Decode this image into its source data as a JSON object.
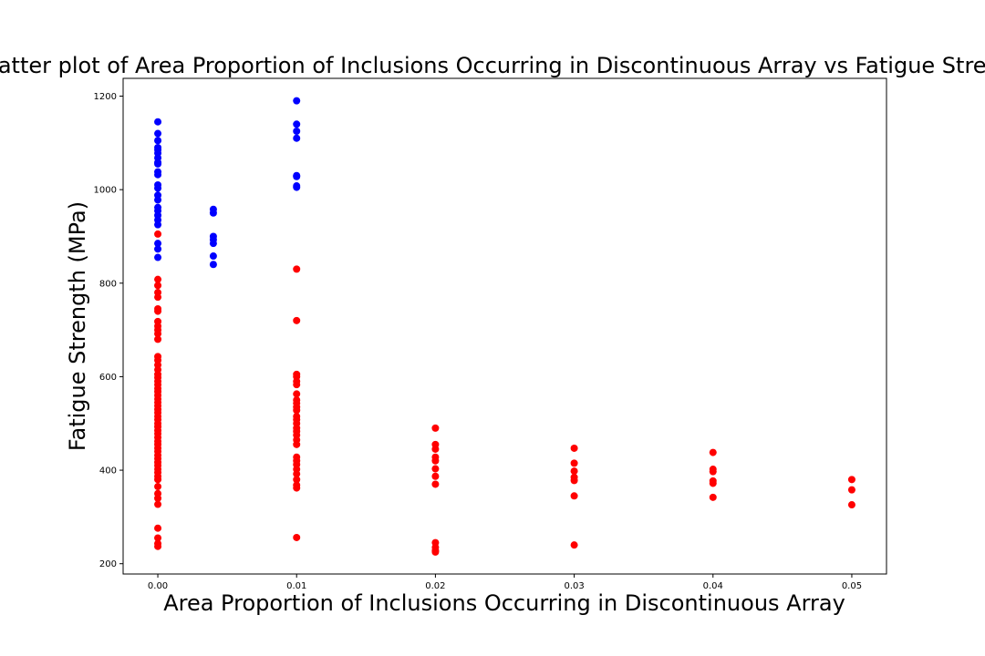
{
  "chart_data": {
    "type": "scatter",
    "title": "Scatter plot of Area Proportion of Inclusions Occurring in Discontinuous Array vs Fatigue Strength",
    "xlabel": "Area Proportion of Inclusions Occurring in Discontinuous Array",
    "ylabel": "Fatigue Strength (MPa)",
    "xlim": [
      -0.0025,
      0.0525
    ],
    "ylim": [
      178,
      1238
    ],
    "xticks": [
      0.0,
      0.01,
      0.02,
      0.03,
      0.04,
      0.05
    ],
    "xtick_labels": [
      "0.00",
      "0.01",
      "0.02",
      "0.03",
      "0.04",
      "0.05"
    ],
    "yticks": [
      200,
      400,
      600,
      800,
      1000,
      1200
    ],
    "ytick_labels": [
      "200",
      "400",
      "600",
      "800",
      "1000",
      "1200"
    ],
    "grid": false,
    "series": [
      {
        "color": "#0000ff",
        "points": [
          [
            0.0,
            1145
          ],
          [
            0.0,
            1120
          ],
          [
            0.0,
            1105
          ],
          [
            0.0,
            1090
          ],
          [
            0.0,
            1085
          ],
          [
            0.0,
            1078
          ],
          [
            0.0,
            1068
          ],
          [
            0.0,
            1058
          ],
          [
            0.0,
            1055
          ],
          [
            0.0,
            1038
          ],
          [
            0.0,
            1032
          ],
          [
            0.0,
            1010
          ],
          [
            0.0,
            1003
          ],
          [
            0.0,
            988
          ],
          [
            0.0,
            978
          ],
          [
            0.0,
            962
          ],
          [
            0.0,
            955
          ],
          [
            0.0,
            945
          ],
          [
            0.0,
            935
          ],
          [
            0.0,
            925
          ],
          [
            0.0,
            885
          ],
          [
            0.0,
            873
          ],
          [
            0.0,
            855
          ],
          [
            0.004,
            958
          ],
          [
            0.004,
            950
          ],
          [
            0.004,
            900
          ],
          [
            0.004,
            893
          ],
          [
            0.004,
            885
          ],
          [
            0.004,
            858
          ],
          [
            0.004,
            840
          ],
          [
            0.01,
            1190
          ],
          [
            0.01,
            1140
          ],
          [
            0.01,
            1125
          ],
          [
            0.01,
            1110
          ],
          [
            0.01,
            1030
          ],
          [
            0.01,
            1028
          ],
          [
            0.01,
            1008
          ],
          [
            0.01,
            1005
          ]
        ]
      },
      {
        "color": "#ff0000",
        "points": [
          [
            0.0,
            905
          ],
          [
            0.0,
            808
          ],
          [
            0.0,
            795
          ],
          [
            0.0,
            780
          ],
          [
            0.0,
            770
          ],
          [
            0.0,
            745
          ],
          [
            0.0,
            740
          ],
          [
            0.0,
            718
          ],
          [
            0.0,
            708
          ],
          [
            0.0,
            700
          ],
          [
            0.0,
            692
          ],
          [
            0.0,
            680
          ],
          [
            0.0,
            643
          ],
          [
            0.0,
            635
          ],
          [
            0.0,
            625
          ],
          [
            0.0,
            615
          ],
          [
            0.0,
            605
          ],
          [
            0.0,
            598
          ],
          [
            0.0,
            590
          ],
          [
            0.0,
            583
          ],
          [
            0.0,
            575
          ],
          [
            0.0,
            568
          ],
          [
            0.0,
            560
          ],
          [
            0.0,
            552
          ],
          [
            0.0,
            545
          ],
          [
            0.0,
            538
          ],
          [
            0.0,
            530
          ],
          [
            0.0,
            523
          ],
          [
            0.0,
            515
          ],
          [
            0.0,
            508
          ],
          [
            0.0,
            500
          ],
          [
            0.0,
            493
          ],
          [
            0.0,
            485
          ],
          [
            0.0,
            478
          ],
          [
            0.0,
            470
          ],
          [
            0.0,
            462
          ],
          [
            0.0,
            455
          ],
          [
            0.0,
            447
          ],
          [
            0.0,
            440
          ],
          [
            0.0,
            432
          ],
          [
            0.0,
            425
          ],
          [
            0.0,
            417
          ],
          [
            0.0,
            410
          ],
          [
            0.0,
            402
          ],
          [
            0.0,
            395
          ],
          [
            0.0,
            387
          ],
          [
            0.0,
            380
          ],
          [
            0.0,
            365
          ],
          [
            0.0,
            350
          ],
          [
            0.0,
            340
          ],
          [
            0.0,
            327
          ],
          [
            0.0,
            276
          ],
          [
            0.0,
            255
          ],
          [
            0.0,
            243
          ],
          [
            0.0,
            237
          ],
          [
            0.01,
            830
          ],
          [
            0.01,
            720
          ],
          [
            0.01,
            605
          ],
          [
            0.01,
            600
          ],
          [
            0.01,
            590
          ],
          [
            0.01,
            583
          ],
          [
            0.01,
            563
          ],
          [
            0.01,
            550
          ],
          [
            0.01,
            543
          ],
          [
            0.01,
            535
          ],
          [
            0.01,
            528
          ],
          [
            0.01,
            515
          ],
          [
            0.01,
            508
          ],
          [
            0.01,
            500
          ],
          [
            0.01,
            490
          ],
          [
            0.01,
            483
          ],
          [
            0.01,
            475
          ],
          [
            0.01,
            465
          ],
          [
            0.01,
            455
          ],
          [
            0.01,
            428
          ],
          [
            0.01,
            420
          ],
          [
            0.01,
            412
          ],
          [
            0.01,
            402
          ],
          [
            0.01,
            392
          ],
          [
            0.01,
            380
          ],
          [
            0.01,
            368
          ],
          [
            0.01,
            362
          ],
          [
            0.01,
            256
          ],
          [
            0.02,
            490
          ],
          [
            0.02,
            455
          ],
          [
            0.02,
            445
          ],
          [
            0.02,
            428
          ],
          [
            0.02,
            420
          ],
          [
            0.02,
            403
          ],
          [
            0.02,
            387
          ],
          [
            0.02,
            370
          ],
          [
            0.02,
            245
          ],
          [
            0.02,
            235
          ],
          [
            0.02,
            228
          ],
          [
            0.02,
            225
          ],
          [
            0.03,
            447
          ],
          [
            0.03,
            415
          ],
          [
            0.03,
            398
          ],
          [
            0.03,
            385
          ],
          [
            0.03,
            378
          ],
          [
            0.03,
            345
          ],
          [
            0.03,
            240
          ],
          [
            0.04,
            438
          ],
          [
            0.04,
            402
          ],
          [
            0.04,
            397
          ],
          [
            0.04,
            377
          ],
          [
            0.04,
            372
          ],
          [
            0.04,
            342
          ],
          [
            0.05,
            380
          ],
          [
            0.05,
            358
          ],
          [
            0.05,
            326
          ]
        ]
      }
    ]
  }
}
